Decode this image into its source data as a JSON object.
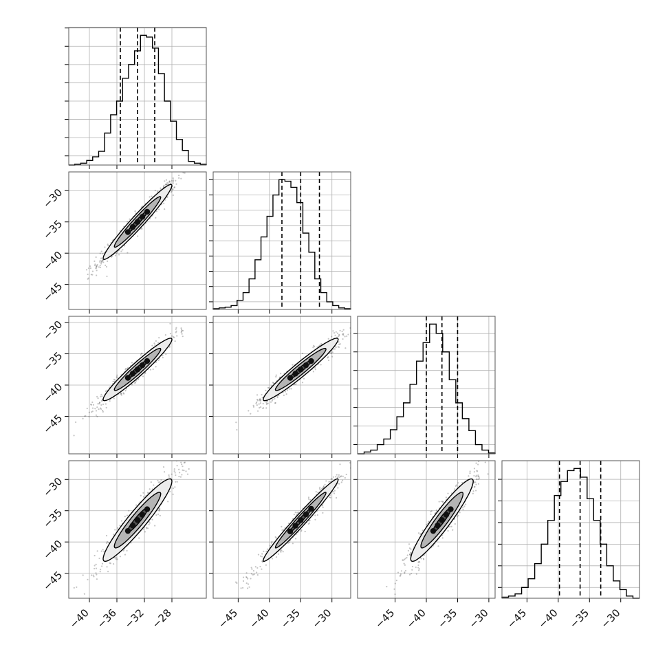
{
  "chart_data": {
    "type": "corner",
    "n_params": 4,
    "axis_ranges": [
      [
        -43,
        -23
      ],
      [
        -49,
        -27
      ],
      [
        -51,
        -29
      ],
      [
        -49,
        -27
      ]
    ],
    "tick_values": [
      [
        -40,
        -36,
        -32,
        -28
      ],
      [
        -45,
        -40,
        -35,
        -30
      ],
      [
        -45,
        -40,
        -35,
        -30
      ],
      [
        -45,
        -40,
        -35,
        -30
      ]
    ],
    "tick_labels": [
      [
        "−40",
        "−36",
        "−32",
        "−28"
      ],
      [
        "−45",
        "−40",
        "−35",
        "−30"
      ],
      [
        "−45",
        "−40",
        "−35",
        "−30"
      ],
      [
        "−45",
        "−40",
        "−35",
        "−30"
      ]
    ],
    "quantiles": [
      [
        -35.5,
        -33.0,
        -30.5
      ],
      [
        -38.0,
        -35.0,
        -32.0
      ],
      [
        -40.0,
        -37.5,
        -35.0
      ],
      [
        -39.8,
        -36.5,
        -33.2
      ]
    ],
    "histograms": [
      [
        0,
        1,
        2,
        5,
        9,
        15,
        35,
        55,
        70,
        95,
        110,
        125,
        142,
        140,
        128,
        100,
        70,
        48,
        28,
        16,
        4,
        2,
        1
      ],
      [
        1,
        2,
        3,
        5,
        12,
        22,
        40,
        65,
        95,
        122,
        150,
        170,
        168,
        160,
        140,
        100,
        75,
        40,
        22,
        10,
        5,
        2,
        1
      ],
      [
        0,
        2,
        4,
        10,
        16,
        26,
        40,
        55,
        75,
        100,
        120,
        140,
        130,
        110,
        80,
        55,
        38,
        25,
        10,
        4,
        1
      ],
      [
        1,
        2,
        4,
        10,
        18,
        32,
        50,
        72,
        95,
        108,
        118,
        120,
        112,
        92,
        72,
        50,
        30,
        16,
        8,
        2,
        0
      ]
    ],
    "correlations": [
      [
        1,
        0.97,
        0.96,
        0.94
      ],
      [
        0.97,
        1,
        0.96,
        0.98
      ],
      [
        0.96,
        0.96,
        1,
        0.94
      ],
      [
        0.94,
        0.98,
        0.94,
        1
      ]
    ],
    "grid": true,
    "title": "",
    "xlabel": "",
    "ylabel": ""
  }
}
